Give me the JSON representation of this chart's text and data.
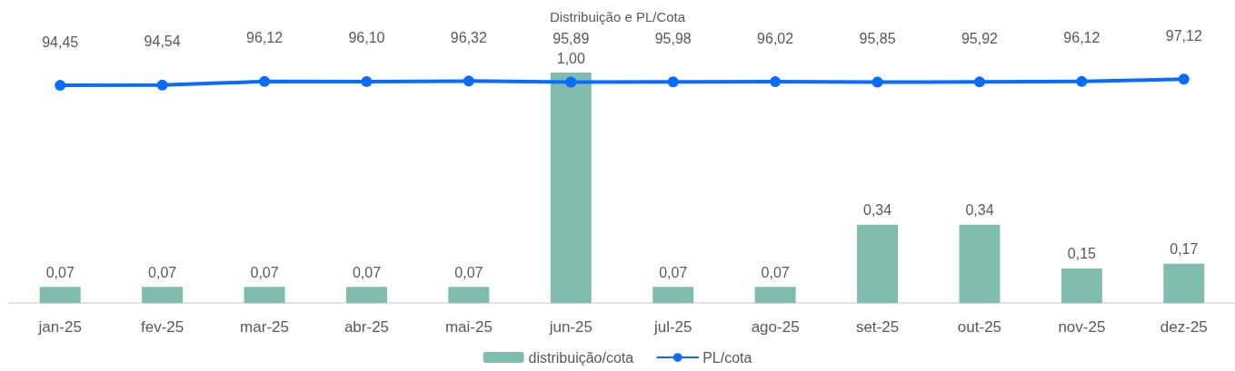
{
  "chart_data": {
    "type": "bar",
    "title": "Distribuição e PL/Cota",
    "categories": [
      "jan-25",
      "fev-25",
      "mar-25",
      "abr-25",
      "mai-25",
      "jun-25",
      "jul-25",
      "ago-25",
      "set-25",
      "out-25",
      "nov-25",
      "dez-25"
    ],
    "series": [
      {
        "name": "distribuição/cota",
        "color": "#80bcad",
        "values": [
          0.07,
          0.07,
          0.07,
          0.07,
          0.07,
          1.0,
          0.07,
          0.07,
          0.34,
          0.34,
          0.15,
          0.17
        ],
        "value_labels": [
          "0,07",
          "0,07",
          "0,07",
          "0,07",
          "0,07",
          "1,00",
          "0,07",
          "0,07",
          "0,34",
          "0,34",
          "0,15",
          "0,17"
        ]
      },
      {
        "name": "PL/cota",
        "type": "line",
        "axis": "y2",
        "color": "#0a6cff",
        "values": [
          94.45,
          94.54,
          96.12,
          96.1,
          96.32,
          95.89,
          95.98,
          96.02,
          95.85,
          95.92,
          96.12,
          97.12
        ],
        "value_labels": [
          "94,45",
          "94,54",
          "96,12",
          "96,10",
          "96,32",
          "95,89",
          "95,98",
          "96,02",
          "95,85",
          "95,92",
          "96,12",
          "97,12"
        ]
      }
    ],
    "marker": "circle",
    "legend": "bottom",
    "grid": false,
    "tick_labels": "x"
  }
}
